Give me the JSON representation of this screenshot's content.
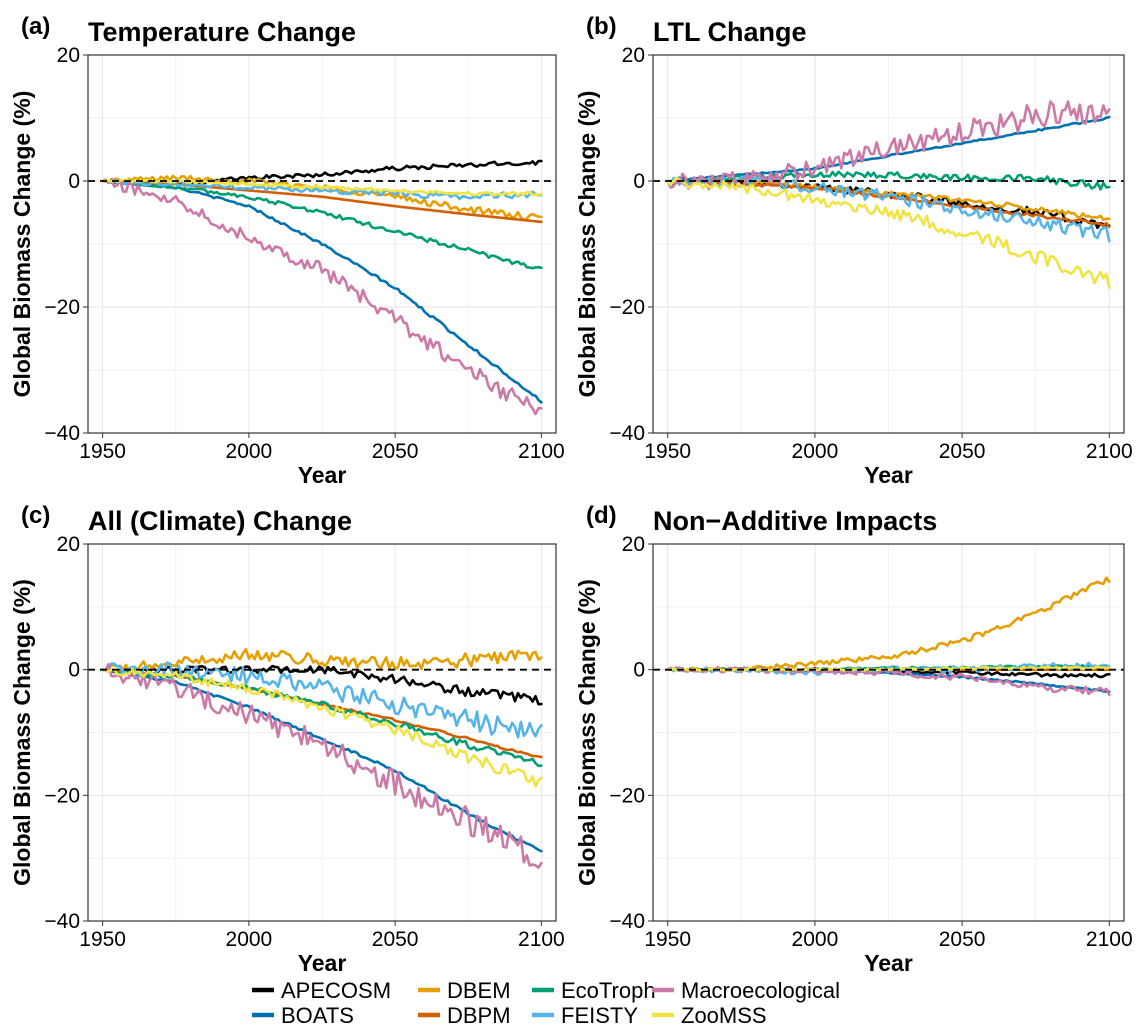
{
  "colors": {
    "APECOSM": "#000000",
    "BOATS": "#0072B2",
    "DBEM": "#E69F00",
    "DBPM": "#D55E00",
    "EcoTroph": "#009E73",
    "FEISTY": "#56B4E9",
    "Macroecological": "#CC79A7",
    "ZooMSS": "#F0E442"
  },
  "legend": {
    "items": [
      "APECOSM",
      "BOATS",
      "DBEM",
      "DBPM",
      "EcoTroph",
      "FEISTY",
      "Macroecological",
      "ZooMSS"
    ]
  },
  "chart_data": [
    {
      "type": "line",
      "panel": "(a)",
      "title": "Temperature Change",
      "xlabel": "Year",
      "ylabel": "Global Biomass Change (%)",
      "xlim": [
        1945,
        2105
      ],
      "ylim": [
        -40,
        20
      ],
      "xticks": [
        1950,
        2000,
        2050,
        2100
      ],
      "yticks": [
        -40,
        -20,
        0,
        20
      ],
      "reference_line": 0,
      "grid": true,
      "series": [
        {
          "name": "APECOSM",
          "x": [
            1950,
            1975,
            2000,
            2025,
            2050,
            2075,
            2100
          ],
          "values": [
            0,
            -0.5,
            0.5,
            1,
            2,
            2.5,
            3
          ],
          "noise": 0.4
        },
        {
          "name": "BOATS",
          "x": [
            1950,
            1975,
            2000,
            2025,
            2050,
            2075,
            2100
          ],
          "values": [
            0,
            -1,
            -4,
            -10,
            -17,
            -26,
            -35
          ],
          "noise": 0.25
        },
        {
          "name": "DBEM",
          "x": [
            1950,
            1975,
            2000,
            2025,
            2050,
            2075,
            2100
          ],
          "values": [
            0,
            0.5,
            0,
            -1,
            -2.5,
            -4.5,
            -6
          ],
          "noise": 0.6
        },
        {
          "name": "DBPM",
          "x": [
            1950,
            1975,
            2000,
            2025,
            2050,
            2075,
            2100
          ],
          "values": [
            0,
            -0.5,
            -1.5,
            -2.5,
            -4,
            -5.3,
            -6.5
          ],
          "noise": 0
        },
        {
          "name": "EcoTroph",
          "x": [
            1950,
            1975,
            2000,
            2025,
            2050,
            2075,
            2100
          ],
          "values": [
            0,
            -1,
            -2.5,
            -5,
            -8,
            -11,
            -14
          ],
          "noise": 0.4
        },
        {
          "name": "FEISTY",
          "x": [
            1950,
            1975,
            2000,
            2025,
            2050,
            2075,
            2100
          ],
          "values": [
            0,
            -0.5,
            -1,
            -1.5,
            -2,
            -2.5,
            -2
          ],
          "noise": 0.5
        },
        {
          "name": "Macroecological",
          "x": [
            1950,
            1975,
            2000,
            2025,
            2050,
            2075,
            2100
          ],
          "values": [
            0,
            -3,
            -9,
            -14,
            -22,
            -30,
            -37
          ],
          "noise": 1.4
        },
        {
          "name": "ZooMSS",
          "x": [
            1950,
            1975,
            2000,
            2025,
            2050,
            2075,
            2100
          ],
          "values": [
            0,
            0,
            -0.5,
            -1,
            -1.5,
            -2,
            -2
          ],
          "noise": 0.3
        }
      ]
    },
    {
      "type": "line",
      "panel": "(b)",
      "title": "LTL Change",
      "xlabel": "Year",
      "ylabel": "Global Biomass Change (%)",
      "xlim": [
        1945,
        2105
      ],
      "ylim": [
        -40,
        20
      ],
      "xticks": [
        1950,
        2000,
        2050,
        2100
      ],
      "yticks": [
        -40,
        -20,
        0,
        20
      ],
      "reference_line": 0,
      "grid": true,
      "series": [
        {
          "name": "APECOSM",
          "x": [
            1950,
            1975,
            2000,
            2025,
            2050,
            2075,
            2100
          ],
          "values": [
            0,
            0,
            -1,
            -2,
            -3.5,
            -5,
            -7
          ],
          "noise": 0.8
        },
        {
          "name": "BOATS",
          "x": [
            1950,
            1975,
            2000,
            2025,
            2050,
            2075,
            2100
          ],
          "values": [
            0,
            1,
            2,
            4,
            6,
            8,
            10
          ],
          "noise": 0.15
        },
        {
          "name": "DBEM",
          "x": [
            1950,
            1975,
            2000,
            2025,
            2050,
            2075,
            2100
          ],
          "values": [
            0,
            0,
            -1,
            -2,
            -3,
            -4.5,
            -6
          ],
          "noise": 0.5
        },
        {
          "name": "DBPM",
          "x": [
            1950,
            1975,
            2000,
            2025,
            2050,
            2075,
            2100
          ],
          "values": [
            0,
            -0.5,
            -1,
            -2.5,
            -4,
            -5.5,
            -7
          ],
          "noise": 0.3
        },
        {
          "name": "EcoTroph",
          "x": [
            1950,
            1975,
            2000,
            2025,
            2050,
            2075,
            2100
          ],
          "values": [
            0,
            0.5,
            1,
            1,
            0.5,
            0.5,
            -1
          ],
          "noise": 0.6
        },
        {
          "name": "FEISTY",
          "x": [
            1950,
            1975,
            2000,
            2025,
            2050,
            2075,
            2100
          ],
          "values": [
            0,
            0,
            -1,
            -2.5,
            -4.5,
            -6.5,
            -8.5
          ],
          "noise": 1.2
        },
        {
          "name": "Macroecological",
          "x": [
            1950,
            1975,
            2000,
            2025,
            2050,
            2075,
            2100
          ],
          "values": [
            0,
            0,
            2,
            5,
            7.5,
            10.5,
            11
          ],
          "noise": 2.2
        },
        {
          "name": "ZooMSS",
          "x": [
            1950,
            1975,
            2000,
            2025,
            2050,
            2075,
            2100
          ],
          "values": [
            0,
            -1,
            -3,
            -5,
            -8,
            -12,
            -16
          ],
          "noise": 1.2
        }
      ]
    },
    {
      "type": "line",
      "panel": "(c)",
      "title": "All (Climate) Change",
      "xlabel": "Year",
      "ylabel": "Global Biomass Change (%)",
      "xlim": [
        1945,
        2105
      ],
      "ylim": [
        -40,
        20
      ],
      "xticks": [
        1950,
        2000,
        2050,
        2100
      ],
      "yticks": [
        -40,
        -20,
        0,
        20
      ],
      "reference_line": 0,
      "grid": true,
      "series": [
        {
          "name": "APECOSM",
          "x": [
            1950,
            1975,
            2000,
            2025,
            2050,
            2075,
            2100
          ],
          "values": [
            0,
            0,
            0,
            0,
            -1.5,
            -3.5,
            -5
          ],
          "noise": 0.8
        },
        {
          "name": "BOATS",
          "x": [
            1950,
            1975,
            2000,
            2025,
            2050,
            2075,
            2100
          ],
          "values": [
            0,
            -2,
            -6,
            -11,
            -16,
            -23,
            -29
          ],
          "noise": 0.25
        },
        {
          "name": "DBEM",
          "x": [
            1950,
            1975,
            2000,
            2025,
            2050,
            2075,
            2100
          ],
          "values": [
            0,
            1,
            2.5,
            1.5,
            1,
            1.5,
            2.5
          ],
          "noise": 1.2
        },
        {
          "name": "DBPM",
          "x": [
            1950,
            1975,
            2000,
            2025,
            2050,
            2075,
            2100
          ],
          "values": [
            0,
            -1,
            -3,
            -5.5,
            -8,
            -11,
            -14
          ],
          "noise": 0.2
        },
        {
          "name": "EcoTroph",
          "x": [
            1950,
            1975,
            2000,
            2025,
            2050,
            2075,
            2100
          ],
          "values": [
            0,
            -1,
            -3,
            -5.5,
            -8.5,
            -12,
            -15
          ],
          "noise": 0.6
        },
        {
          "name": "FEISTY",
          "x": [
            1950,
            1975,
            2000,
            2025,
            2050,
            2075,
            2100
          ],
          "values": [
            0,
            0,
            -1,
            -3,
            -5.5,
            -8,
            -10
          ],
          "noise": 1.8
        },
        {
          "name": "Macroecological",
          "x": [
            1950,
            1975,
            2000,
            2025,
            2050,
            2075,
            2100
          ],
          "values": [
            0,
            -3,
            -7,
            -12,
            -18,
            -24,
            -30
          ],
          "noise": 2.4
        },
        {
          "name": "ZooMSS",
          "x": [
            1950,
            1975,
            2000,
            2025,
            2050,
            2075,
            2100
          ],
          "values": [
            0,
            -1,
            -3,
            -6,
            -9.5,
            -14,
            -18
          ],
          "noise": 1.0
        }
      ]
    },
    {
      "type": "line",
      "panel": "(d)",
      "title": "Non−Additive Impacts",
      "xlabel": "Year",
      "ylabel": "Global Biomass Change (%)",
      "xlim": [
        1945,
        2105
      ],
      "ylim": [
        -40,
        20
      ],
      "xticks": [
        1950,
        2000,
        2050,
        2100
      ],
      "yticks": [
        -40,
        -20,
        0,
        20
      ],
      "reference_line": 0,
      "grid": true,
      "series": [
        {
          "name": "APECOSM",
          "x": [
            1950,
            1975,
            2000,
            2025,
            2050,
            2075,
            2100
          ],
          "values": [
            0,
            0,
            0,
            -0.3,
            -0.5,
            -0.8,
            -1
          ],
          "noise": 0.3
        },
        {
          "name": "BOATS",
          "x": [
            1950,
            1975,
            2000,
            2025,
            2050,
            2075,
            2100
          ],
          "values": [
            0,
            0,
            -0.2,
            -0.5,
            -1.2,
            -2.2,
            -3.5
          ],
          "noise": 0.15
        },
        {
          "name": "DBEM",
          "x": [
            1950,
            1975,
            2000,
            2025,
            2050,
            2075,
            2100
          ],
          "values": [
            0,
            0,
            1,
            2,
            4.5,
            9,
            14.5
          ],
          "noise": 0.5
        },
        {
          "name": "DBPM",
          "x": [
            1950,
            1975,
            2000,
            2025,
            2050,
            2075,
            2100
          ],
          "values": [
            0,
            0,
            0,
            0,
            0,
            0,
            0
          ],
          "noise": 0
        },
        {
          "name": "EcoTroph",
          "x": [
            1950,
            1975,
            2000,
            2025,
            2050,
            2075,
            2100
          ],
          "values": [
            0,
            0,
            0,
            0.3,
            0.3,
            0.5,
            0.5
          ],
          "noise": 0.2
        },
        {
          "name": "FEISTY",
          "x": [
            1950,
            1975,
            2000,
            2025,
            2050,
            2075,
            2100
          ],
          "values": [
            0,
            0,
            -0.5,
            0,
            0,
            0.5,
            0.5
          ],
          "noise": 0.6
        },
        {
          "name": "Macroecological",
          "x": [
            1950,
            1975,
            2000,
            2025,
            2050,
            2075,
            2100
          ],
          "values": [
            0,
            0,
            -0.2,
            -0.5,
            -1.2,
            -2.8,
            -3.5
          ],
          "noise": 0.6
        },
        {
          "name": "ZooMSS",
          "x": [
            1950,
            1975,
            2000,
            2025,
            2050,
            2075,
            2100
          ],
          "values": [
            0,
            0,
            0,
            0,
            0.2,
            0.3,
            0.3
          ],
          "noise": 0.2
        }
      ]
    }
  ]
}
